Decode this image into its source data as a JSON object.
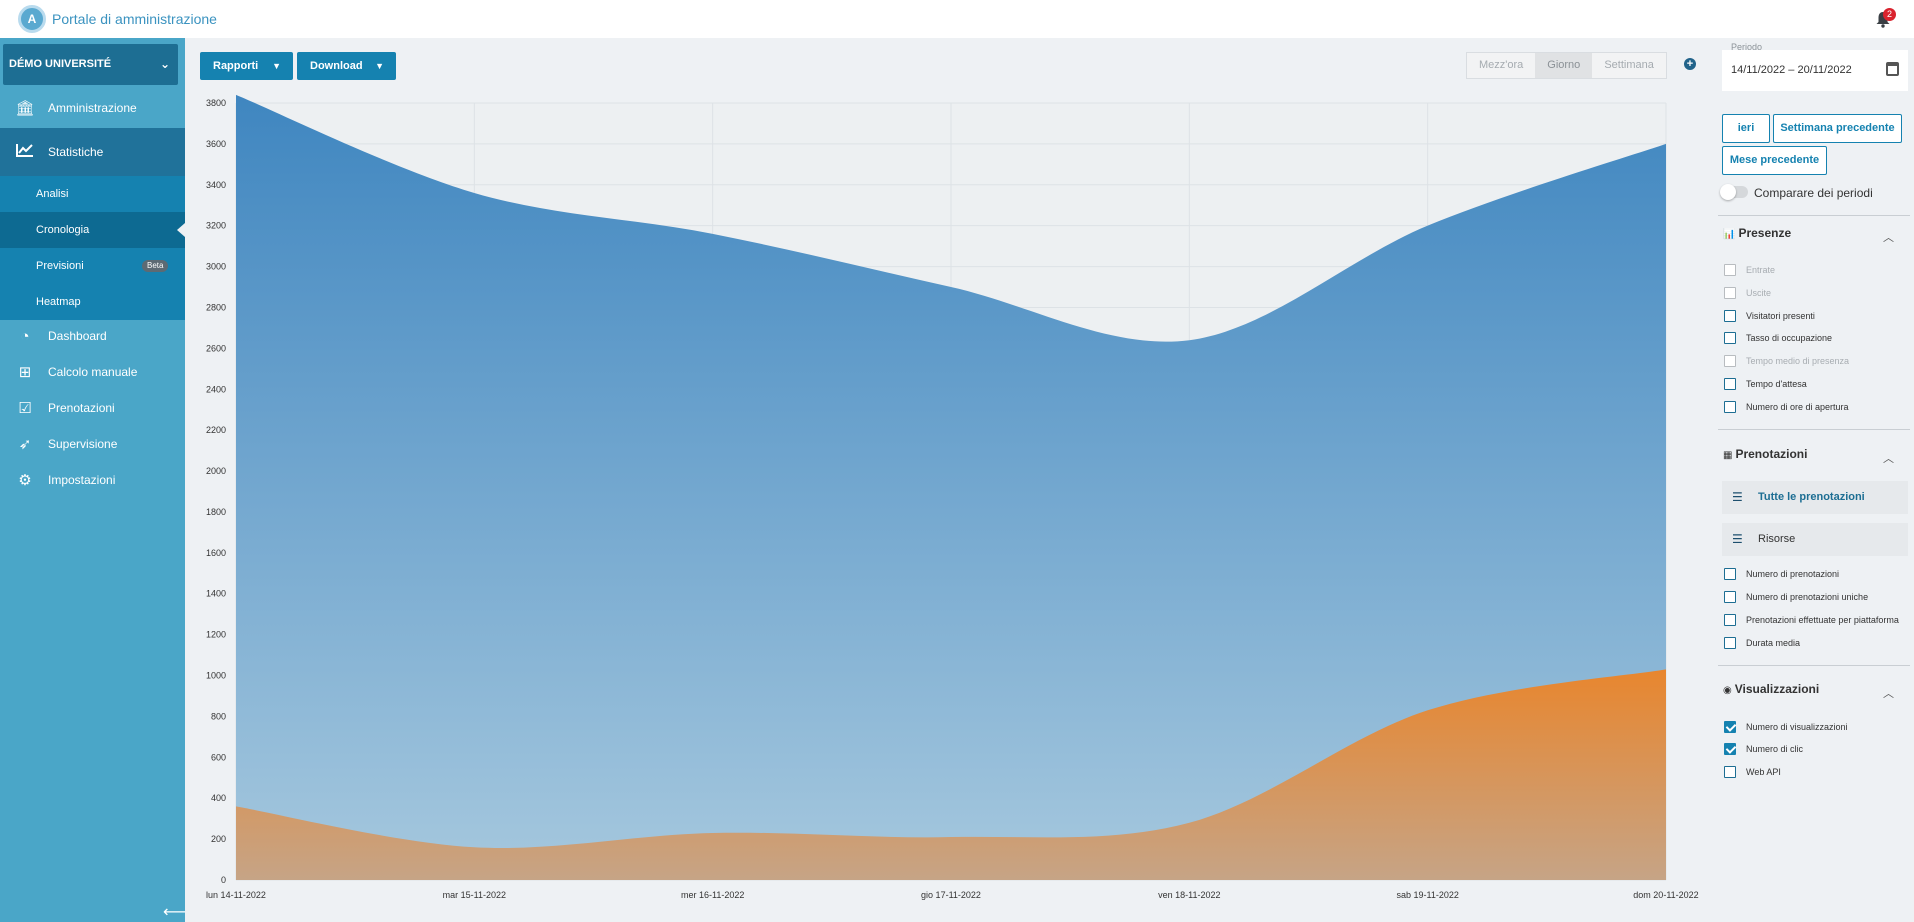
{
  "header": {
    "title": "Portale di amministrazione",
    "notification_count": "2"
  },
  "sidebar": {
    "org_name": "DÉMO UNIVERSITÉ",
    "items": [
      {
        "label": "Amministrazione",
        "icon": "bank-icon"
      },
      {
        "label": "Statistiche",
        "icon": "chart-line-icon"
      },
      {
        "label": "Dashboard",
        "icon": "gauge-icon"
      },
      {
        "label": "Calcolo manuale",
        "icon": "plus-square-icon"
      },
      {
        "label": "Prenotazioni",
        "icon": "calendar-check-icon"
      },
      {
        "label": "Supervisione",
        "icon": "rocket-icon"
      },
      {
        "label": "Impostazioni",
        "icon": "gears-icon"
      }
    ],
    "subitems": [
      {
        "label": "Analisi"
      },
      {
        "label": "Cronologia"
      },
      {
        "label": "Previsioni",
        "badge": "Beta"
      },
      {
        "label": "Heatmap"
      }
    ]
  },
  "toolbar": {
    "reports_label": "Rapporti",
    "download_label": "Download",
    "granularity": [
      "Mezz'ora",
      "Giorno",
      "Settimana"
    ],
    "granularity_selected": "Giorno"
  },
  "panel": {
    "period_label": "Periodo",
    "period_value": "14/11/2022 – 20/11/2022",
    "quick_yesterday": "ieri",
    "quick_prev_week": "Settimana precedente",
    "quick_prev_month": "Mese precedente",
    "compare_label": "Comparare dei periodi",
    "presenze": {
      "title": "Presenze",
      "items": [
        {
          "label": "Entrate",
          "enabled": false,
          "checked": false
        },
        {
          "label": "Uscite",
          "enabled": false,
          "checked": false
        },
        {
          "label": "Visitatori presenti",
          "enabled": true,
          "checked": false
        },
        {
          "label": "Tasso di occupazione",
          "enabled": true,
          "checked": false
        },
        {
          "label": "Tempo medio di presenza",
          "enabled": false,
          "checked": false
        },
        {
          "label": "Tempo d'attesa",
          "enabled": true,
          "checked": false
        },
        {
          "label": "Numero di ore di apertura",
          "enabled": true,
          "checked": false
        }
      ]
    },
    "prenotazioni": {
      "title": "Prenotazioni",
      "filters": [
        "Tutte le prenotazioni",
        "Risorse"
      ],
      "items": [
        {
          "label": "Numero di prenotazioni",
          "checked": false
        },
        {
          "label": "Numero di prenotazioni uniche",
          "checked": false
        },
        {
          "label": "Prenotazioni effettuate per piattaforma",
          "checked": false
        },
        {
          "label": "Durata media",
          "checked": false
        }
      ]
    },
    "visualizzazioni": {
      "title": "Visualizzazioni",
      "items": [
        {
          "label": "Numero di visualizzazioni",
          "checked": true
        },
        {
          "label": "Numero di clic",
          "checked": true
        },
        {
          "label": "Web API",
          "checked": false
        }
      ]
    }
  },
  "chart_data": {
    "type": "area",
    "categories": [
      "lun 14-11-2022",
      "mar 15-11-2022",
      "mer 16-11-2022",
      "gio 17-11-2022",
      "ven 18-11-2022",
      "sab 19-11-2022",
      "dom 20-11-2022"
    ],
    "series": [
      {
        "values": [
          3840,
          3360,
          3160,
          2900,
          2640,
          3200,
          3600
        ],
        "color": "#4a8fc4"
      },
      {
        "values": [
          360,
          160,
          230,
          210,
          280,
          830,
          1030
        ],
        "color": "#e48a3c"
      }
    ],
    "ylim": [
      0,
      3800
    ],
    "yticks": [
      0,
      200,
      400,
      600,
      800,
      1000,
      1200,
      1400,
      1600,
      1800,
      2000,
      2200,
      2400,
      2600,
      2800,
      3000,
      3200,
      3400,
      3600,
      3800
    ],
    "grid": true
  }
}
